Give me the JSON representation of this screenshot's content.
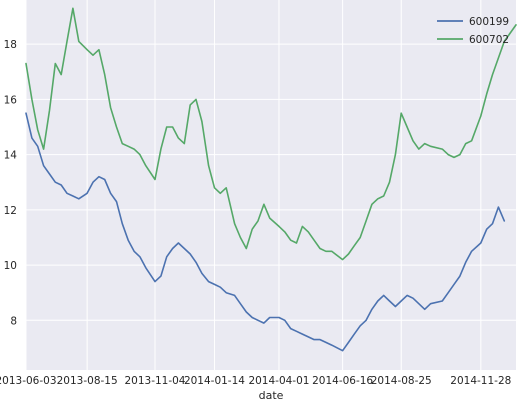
{
  "chart_data": {
    "type": "line",
    "title": "",
    "xlabel": "date",
    "ylabel": "",
    "x_ticks": [
      "2013-06-03",
      "2013-08-15",
      "2013-11-04",
      "2014-01-14",
      "2014-04-01",
      "2014-06-16",
      "2014-08-25",
      "2014-11-28"
    ],
    "x_range": [
      "2013-06-03",
      "2015-01-09"
    ],
    "y_ticks": [
      "8",
      "10",
      "12",
      "14",
      "16",
      "18"
    ],
    "ylim": [
      6.2,
      19.6
    ],
    "grid": true,
    "legend_position": "top-right",
    "series": [
      {
        "name": "600199",
        "color": "#4c72b0",
        "points": [
          [
            "2013-06-03",
            15.5
          ],
          [
            "2013-06-10",
            14.6
          ],
          [
            "2013-06-17",
            14.3
          ],
          [
            "2013-06-24",
            13.6
          ],
          [
            "2013-07-01",
            13.3
          ],
          [
            "2013-07-08",
            13.0
          ],
          [
            "2013-07-15",
            12.9
          ],
          [
            "2013-07-22",
            12.6
          ],
          [
            "2013-07-29",
            12.5
          ],
          [
            "2013-08-05",
            12.4
          ],
          [
            "2013-08-15",
            12.6
          ],
          [
            "2013-08-22",
            13.0
          ],
          [
            "2013-08-29",
            13.2
          ],
          [
            "2013-09-05",
            13.1
          ],
          [
            "2013-09-12",
            12.6
          ],
          [
            "2013-09-19",
            12.3
          ],
          [
            "2013-09-26",
            11.5
          ],
          [
            "2013-10-03",
            10.9
          ],
          [
            "2013-10-10",
            10.5
          ],
          [
            "2013-10-17",
            10.3
          ],
          [
            "2013-10-24",
            9.9
          ],
          [
            "2013-11-04",
            9.4
          ],
          [
            "2013-11-11",
            9.6
          ],
          [
            "2013-11-18",
            10.3
          ],
          [
            "2013-11-25",
            10.6
          ],
          [
            "2013-12-02",
            10.8
          ],
          [
            "2013-12-09",
            10.6
          ],
          [
            "2013-12-16",
            10.4
          ],
          [
            "2013-12-23",
            10.1
          ],
          [
            "2013-12-30",
            9.7
          ],
          [
            "2014-01-07",
            9.4
          ],
          [
            "2014-01-14",
            9.3
          ],
          [
            "2014-01-21",
            9.2
          ],
          [
            "2014-01-28",
            9.0
          ],
          [
            "2014-02-07",
            8.9
          ],
          [
            "2014-02-14",
            8.6
          ],
          [
            "2014-02-21",
            8.3
          ],
          [
            "2014-02-28",
            8.1
          ],
          [
            "2014-03-07",
            8.0
          ],
          [
            "2014-03-14",
            7.9
          ],
          [
            "2014-03-21",
            8.1
          ],
          [
            "2014-04-01",
            8.1
          ],
          [
            "2014-04-08",
            8.0
          ],
          [
            "2014-04-15",
            7.7
          ],
          [
            "2014-04-22",
            7.6
          ],
          [
            "2014-04-29",
            7.5
          ],
          [
            "2014-05-06",
            7.4
          ],
          [
            "2014-05-13",
            7.3
          ],
          [
            "2014-05-20",
            7.3
          ],
          [
            "2014-05-27",
            7.2
          ],
          [
            "2014-06-03",
            7.1
          ],
          [
            "2014-06-16",
            6.9
          ],
          [
            "2014-06-23",
            7.2
          ],
          [
            "2014-06-30",
            7.5
          ],
          [
            "2014-07-07",
            7.8
          ],
          [
            "2014-07-14",
            8.0
          ],
          [
            "2014-07-21",
            8.4
          ],
          [
            "2014-07-28",
            8.7
          ],
          [
            "2014-08-04",
            8.9
          ],
          [
            "2014-08-11",
            8.7
          ],
          [
            "2014-08-18",
            8.5
          ],
          [
            "2014-08-25",
            8.7
          ],
          [
            "2014-09-01",
            8.9
          ],
          [
            "2014-09-08",
            8.8
          ],
          [
            "2014-09-15",
            8.6
          ],
          [
            "2014-09-22",
            8.4
          ],
          [
            "2014-09-29",
            8.6
          ],
          [
            "2014-10-13",
            8.7
          ],
          [
            "2014-10-20",
            9.0
          ],
          [
            "2014-10-27",
            9.3
          ],
          [
            "2014-11-03",
            9.6
          ],
          [
            "2014-11-10",
            10.1
          ],
          [
            "2014-11-17",
            10.5
          ],
          [
            "2014-11-28",
            10.8
          ],
          [
            "2014-12-05",
            11.3
          ],
          [
            "2014-12-12",
            11.5
          ],
          [
            "2014-12-19",
            12.1
          ],
          [
            "2014-12-26",
            11.6
          ]
        ]
      },
      {
        "name": "600702",
        "color": "#55a868",
        "points": [
          [
            "2013-06-03",
            17.3
          ],
          [
            "2013-06-10",
            16.0
          ],
          [
            "2013-06-17",
            14.9
          ],
          [
            "2013-06-24",
            14.2
          ],
          [
            "2013-07-01",
            15.6
          ],
          [
            "2013-07-08",
            17.3
          ],
          [
            "2013-07-15",
            16.9
          ],
          [
            "2013-07-22",
            18.1
          ],
          [
            "2013-07-29",
            19.3
          ],
          [
            "2013-08-05",
            18.1
          ],
          [
            "2013-08-15",
            17.8
          ],
          [
            "2013-08-22",
            17.6
          ],
          [
            "2013-08-29",
            17.8
          ],
          [
            "2013-09-05",
            16.9
          ],
          [
            "2013-09-12",
            15.7
          ],
          [
            "2013-09-19",
            15.0
          ],
          [
            "2013-09-26",
            14.4
          ],
          [
            "2013-10-03",
            14.3
          ],
          [
            "2013-10-10",
            14.2
          ],
          [
            "2013-10-17",
            14.0
          ],
          [
            "2013-10-24",
            13.6
          ],
          [
            "2013-11-04",
            13.1
          ],
          [
            "2013-11-11",
            14.2
          ],
          [
            "2013-11-18",
            15.0
          ],
          [
            "2013-11-25",
            15.0
          ],
          [
            "2013-12-02",
            14.6
          ],
          [
            "2013-12-09",
            14.4
          ],
          [
            "2013-12-16",
            15.8
          ],
          [
            "2013-12-23",
            16.0
          ],
          [
            "2013-12-30",
            15.2
          ],
          [
            "2014-01-07",
            13.6
          ],
          [
            "2014-01-14",
            12.8
          ],
          [
            "2014-01-21",
            12.6
          ],
          [
            "2014-01-28",
            12.8
          ],
          [
            "2014-02-07",
            11.5
          ],
          [
            "2014-02-14",
            11.0
          ],
          [
            "2014-02-21",
            10.6
          ],
          [
            "2014-02-28",
            11.3
          ],
          [
            "2014-03-07",
            11.6
          ],
          [
            "2014-03-14",
            12.2
          ],
          [
            "2014-03-21",
            11.7
          ],
          [
            "2014-04-01",
            11.4
          ],
          [
            "2014-04-08",
            11.2
          ],
          [
            "2014-04-15",
            10.9
          ],
          [
            "2014-04-22",
            10.8
          ],
          [
            "2014-04-29",
            11.4
          ],
          [
            "2014-05-06",
            11.2
          ],
          [
            "2014-05-13",
            10.9
          ],
          [
            "2014-05-20",
            10.6
          ],
          [
            "2014-05-27",
            10.5
          ],
          [
            "2014-06-03",
            10.5
          ],
          [
            "2014-06-16",
            10.2
          ],
          [
            "2014-06-23",
            10.4
          ],
          [
            "2014-06-30",
            10.7
          ],
          [
            "2014-07-07",
            11.0
          ],
          [
            "2014-07-14",
            11.6
          ],
          [
            "2014-07-21",
            12.2
          ],
          [
            "2014-07-28",
            12.4
          ],
          [
            "2014-08-04",
            12.5
          ],
          [
            "2014-08-11",
            13.0
          ],
          [
            "2014-08-18",
            14.0
          ],
          [
            "2014-08-25",
            15.5
          ],
          [
            "2014-09-01",
            15.0
          ],
          [
            "2014-09-08",
            14.5
          ],
          [
            "2014-09-15",
            14.2
          ],
          [
            "2014-09-22",
            14.4
          ],
          [
            "2014-09-29",
            14.3
          ],
          [
            "2014-10-13",
            14.2
          ],
          [
            "2014-10-20",
            14.0
          ],
          [
            "2014-10-27",
            13.9
          ],
          [
            "2014-11-03",
            14.0
          ],
          [
            "2014-11-10",
            14.4
          ],
          [
            "2014-11-17",
            14.5
          ],
          [
            "2014-11-28",
            15.4
          ],
          [
            "2014-12-05",
            16.2
          ],
          [
            "2014-12-12",
            16.9
          ],
          [
            "2014-12-19",
            17.5
          ],
          [
            "2014-12-26",
            18.1
          ],
          [
            "2015-01-09",
            18.7
          ]
        ]
      }
    ]
  }
}
